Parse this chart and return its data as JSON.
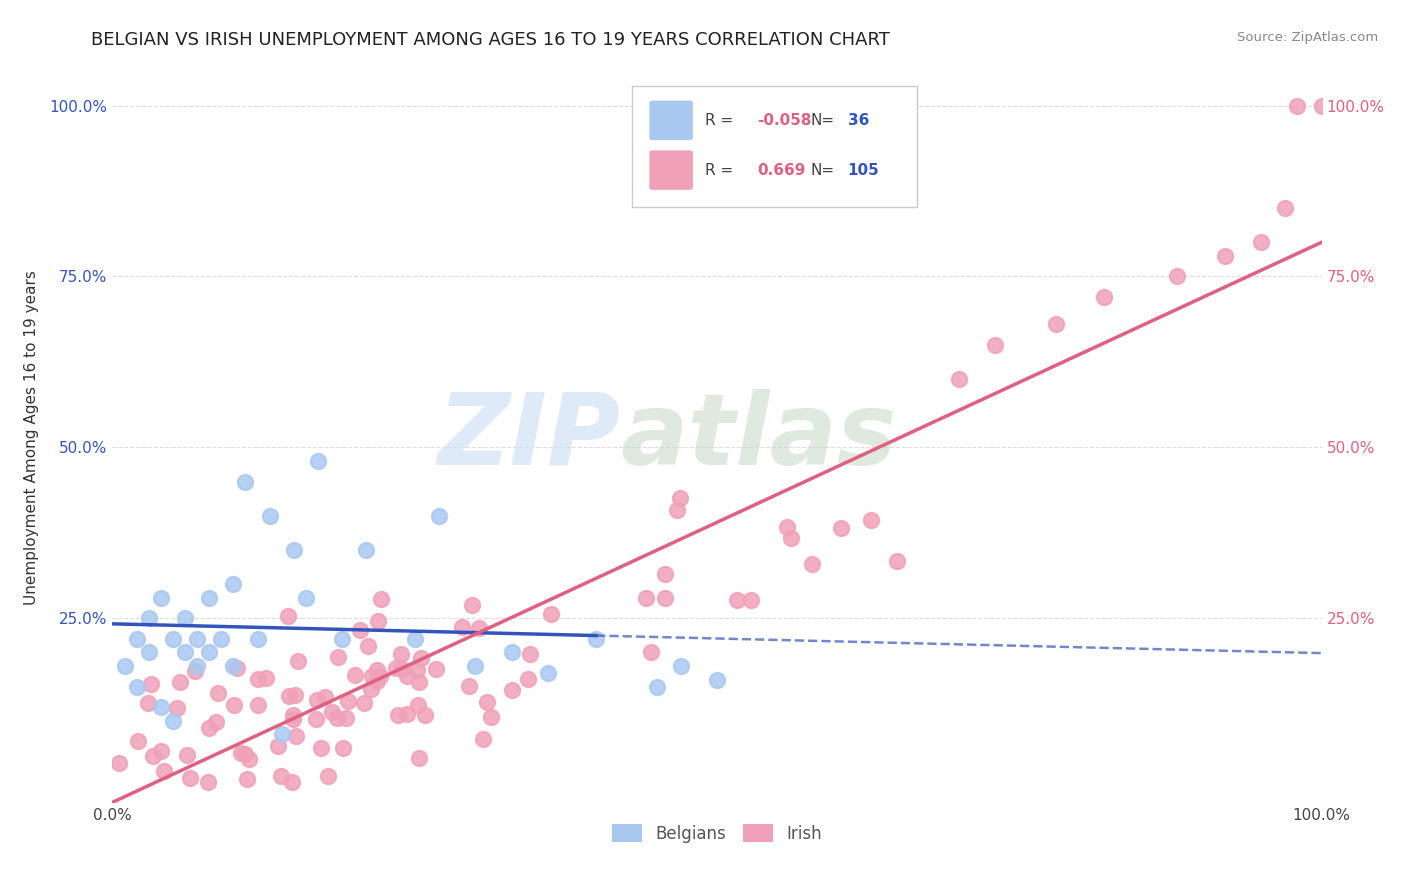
{
  "title": "BELGIAN VS IRISH UNEMPLOYMENT AMONG AGES 16 TO 19 YEARS CORRELATION CHART",
  "source": "Source: ZipAtlas.com",
  "ylabel": "Unemployment Among Ages 16 to 19 years",
  "watermark_zip": "ZIP",
  "watermark_atlas": "atlas",
  "xlim": [
    0.0,
    1.0
  ],
  "ylim": [
    -0.02,
    1.05
  ],
  "xtick_vals": [
    0.0,
    0.25,
    0.5,
    0.75,
    1.0
  ],
  "ytick_vals": [
    0.0,
    0.25,
    0.5,
    0.75,
    1.0
  ],
  "xticklabels": [
    "0.0%",
    "",
    "",
    "",
    "100.0%"
  ],
  "yticklabels_left": [
    "",
    "25.0%",
    "50.0%",
    "75.0%",
    "100.0%"
  ],
  "yticklabels_right": [
    "",
    "25.0%",
    "50.0%",
    "75.0%",
    "100.0%"
  ],
  "belgian_color": "#a8c8f0",
  "irish_color": "#f0a0b8",
  "belgian_line_color": "#3355bb",
  "irish_line_color": "#e06080",
  "belgian_R": -0.058,
  "belgian_N": 36,
  "irish_R": 0.669,
  "irish_N": 105,
  "background_color": "#ffffff",
  "grid_color": "#dddddd",
  "title_fontsize": 13,
  "label_fontsize": 11,
  "tick_fontsize": 11,
  "legend_R_color": "#e06080",
  "legend_N_color": "#3355bb"
}
